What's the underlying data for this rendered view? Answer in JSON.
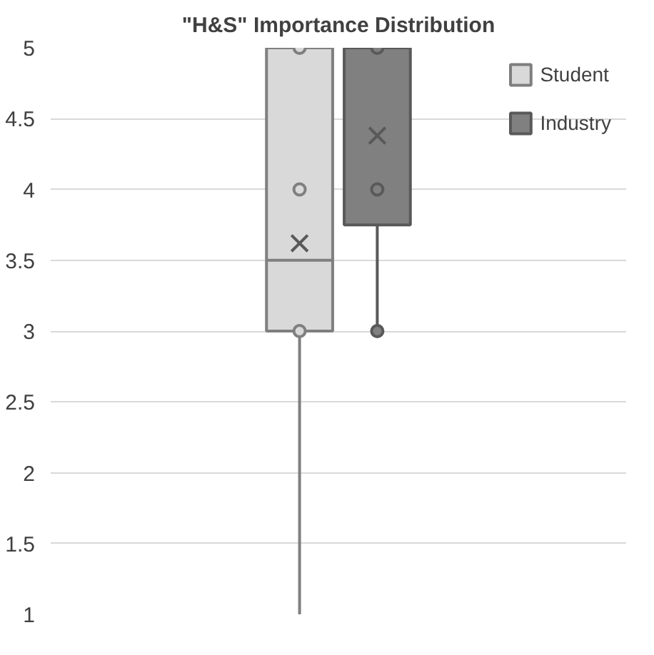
{
  "chart_data": {
    "type": "box",
    "title": "\"H&S\" Importance Distribution",
    "categories": [
      null
    ],
    "series": [
      {
        "name": "Student",
        "color": "#d9d9d9",
        "boxes": [
          {
            "low": 1,
            "q1": 3,
            "median": 3.5,
            "q3": 5,
            "high": 5,
            "mean": 3.62,
            "outliers": [
              5,
              4,
              3
            ]
          }
        ]
      },
      {
        "name": "Industry",
        "color": "#808080",
        "boxes": [
          {
            "low": 3,
            "q1": 3.75,
            "median": 5,
            "q3": 5,
            "high": 5,
            "mean": 4.38,
            "outliers": [
              5,
              4,
              3
            ]
          }
        ]
      }
    ],
    "ylim": [
      1,
      5
    ],
    "yticks": [
      1,
      1.5,
      2,
      2.5,
      3,
      3.5,
      4,
      4.5,
      5
    ],
    "grid": "y",
    "legend": "top right"
  }
}
